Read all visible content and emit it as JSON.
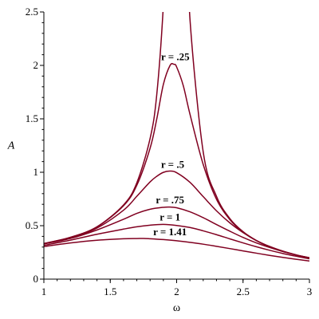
{
  "chart_data": {
    "type": "line",
    "title": "",
    "xlabel": "ω",
    "ylabel": "A",
    "xlim": [
      1,
      3
    ],
    "ylim": [
      0,
      2.5
    ],
    "x_ticks": [
      "1",
      "1.5",
      "2",
      "2.5",
      "3"
    ],
    "y_ticks": [
      "0",
      "0.5",
      "1",
      "1.5",
      "2",
      "2.5"
    ],
    "grid": false,
    "line_color": "#800020",
    "series": [
      {
        "name": "r = 0",
        "values": [
          [
            1,
            0.333
          ],
          [
            1.2,
            0.391
          ],
          [
            1.4,
            0.49
          ],
          [
            1.6,
            0.694
          ],
          [
            1.7,
            0.901
          ],
          [
            1.8,
            1.316
          ],
          [
            1.85,
            1.724
          ],
          [
            1.9,
            2.564
          ],
          [
            1.93,
            3.5
          ],
          [
            2.07,
            3.5
          ],
          [
            2.1,
            2.439
          ],
          [
            2.2,
            1.19
          ],
          [
            2.3,
            0.775
          ],
          [
            2.4,
            0.568
          ],
          [
            2.5,
            0.444
          ],
          [
            2.6,
            0.362
          ],
          [
            2.7,
            0.303
          ],
          [
            2.8,
            0.26
          ],
          [
            2.9,
            0.226
          ],
          [
            3,
            0.2
          ]
        ]
      },
      {
        "name": "r = .25",
        "values": [
          [
            1,
            0.333
          ],
          [
            1.2,
            0.391
          ],
          [
            1.4,
            0.489
          ],
          [
            1.6,
            0.687
          ],
          [
            1.7,
            0.878
          ],
          [
            1.8,
            1.225
          ],
          [
            1.85,
            1.497
          ],
          [
            1.9,
            1.822
          ],
          [
            1.95,
            1.999
          ],
          [
            1.98,
            2.01
          ],
          [
            2.0,
            1.985
          ],
          [
            2.05,
            1.81
          ],
          [
            2.1,
            1.545
          ],
          [
            2.2,
            1.073
          ],
          [
            2.3,
            0.748
          ],
          [
            2.4,
            0.558
          ],
          [
            2.5,
            0.44
          ],
          [
            2.6,
            0.36
          ],
          [
            2.7,
            0.302
          ],
          [
            2.8,
            0.259
          ],
          [
            2.9,
            0.226
          ],
          [
            3,
            0.2
          ]
        ]
      },
      {
        "name": "r = .5",
        "values": [
          [
            1,
            0.331
          ],
          [
            1.2,
            0.387
          ],
          [
            1.4,
            0.478
          ],
          [
            1.6,
            0.645
          ],
          [
            1.7,
            0.775
          ],
          [
            1.8,
            0.91
          ],
          [
            1.85,
            0.962
          ],
          [
            1.9,
            0.999
          ],
          [
            1.95,
            1.011
          ],
          [
            2.0,
            0.996
          ],
          [
            2.1,
            0.906
          ],
          [
            2.2,
            0.772
          ],
          [
            2.3,
            0.639
          ],
          [
            2.4,
            0.527
          ],
          [
            2.5,
            0.436
          ],
          [
            2.6,
            0.362
          ],
          [
            2.7,
            0.306
          ],
          [
            2.8,
            0.262
          ],
          [
            2.9,
            0.227
          ],
          [
            3,
            0.197
          ]
        ]
      },
      {
        "name": "r = .75",
        "values": [
          [
            1,
            0.329
          ],
          [
            1.2,
            0.38
          ],
          [
            1.4,
            0.46
          ],
          [
            1.6,
            0.56
          ],
          [
            1.7,
            0.615
          ],
          [
            1.8,
            0.654
          ],
          [
            1.9,
            0.672
          ],
          [
            1.95,
            0.674
          ],
          [
            2.0,
            0.668
          ],
          [
            2.1,
            0.63
          ],
          [
            2.2,
            0.575
          ],
          [
            2.3,
            0.511
          ],
          [
            2.4,
            0.449
          ],
          [
            2.5,
            0.39
          ],
          [
            2.6,
            0.339
          ],
          [
            2.7,
            0.296
          ],
          [
            2.8,
            0.258
          ],
          [
            2.9,
            0.226
          ],
          [
            3,
            0.197
          ]
        ]
      },
      {
        "name": "r = 1",
        "values": [
          [
            1,
            0.316
          ],
          [
            1.2,
            0.365
          ],
          [
            1.4,
            0.42
          ],
          [
            1.6,
            0.468
          ],
          [
            1.7,
            0.49
          ],
          [
            1.8,
            0.505
          ],
          [
            1.9,
            0.512
          ],
          [
            2.0,
            0.502
          ],
          [
            2.1,
            0.483
          ],
          [
            2.2,
            0.452
          ],
          [
            2.3,
            0.416
          ],
          [
            2.4,
            0.377
          ],
          [
            2.5,
            0.339
          ],
          [
            2.6,
            0.303
          ],
          [
            2.7,
            0.27
          ],
          [
            2.8,
            0.24
          ],
          [
            2.9,
            0.214
          ],
          [
            3,
            0.19
          ]
        ]
      },
      {
        "name": "r = 1.41",
        "values": [
          [
            1,
            0.305
          ],
          [
            1.2,
            0.339
          ],
          [
            1.4,
            0.364
          ],
          [
            1.6,
            0.378
          ],
          [
            1.7,
            0.38
          ],
          [
            1.75,
            0.381
          ],
          [
            1.8,
            0.378
          ],
          [
            1.9,
            0.37
          ],
          [
            2.0,
            0.359
          ],
          [
            2.1,
            0.344
          ],
          [
            2.2,
            0.327
          ],
          [
            2.3,
            0.307
          ],
          [
            2.4,
            0.286
          ],
          [
            2.5,
            0.264
          ],
          [
            2.6,
            0.243
          ],
          [
            2.7,
            0.222
          ],
          [
            2.8,
            0.203
          ],
          [
            2.9,
            0.186
          ],
          [
            3,
            0.17
          ]
        ]
      }
    ],
    "curve_labels": [
      {
        "text": "r = .25",
        "x": 1.99,
        "y": 2.05
      },
      {
        "text": "r = .5",
        "x": 1.97,
        "y": 1.04
      },
      {
        "text": "r = .75",
        "x": 1.95,
        "y": 0.71
      },
      {
        "text": "r = 1",
        "x": 1.95,
        "y": 0.55
      },
      {
        "text": "r = 1.41",
        "x": 1.95,
        "y": 0.41
      }
    ]
  }
}
